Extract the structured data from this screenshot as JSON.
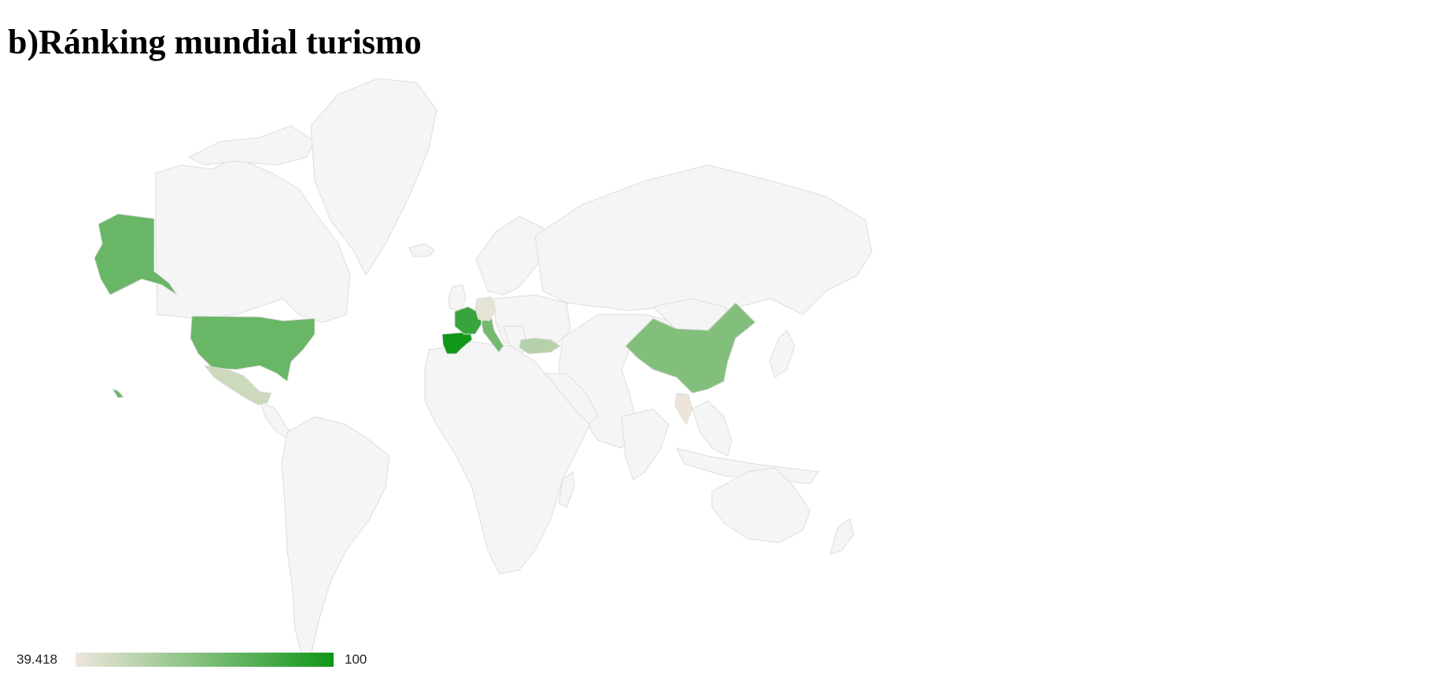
{
  "title": "b)Ránking mundial turismo",
  "legend": {
    "min_label": "39.418",
    "max_label": "100",
    "min_value": 39.418,
    "max_value": 100,
    "min_color": "#efe6dc",
    "max_color": "#109618"
  },
  "colors": {
    "no_data": "#f5f5f5",
    "border": "#dddddd"
  },
  "regions": [
    {
      "name": "Spain",
      "value": 100
    },
    {
      "name": "France",
      "value": 89
    },
    {
      "name": "United States",
      "value": 76
    },
    {
      "name": "Italy",
      "value": 73
    },
    {
      "name": "China",
      "value": 69
    },
    {
      "name": "Turkey",
      "value": 55
    },
    {
      "name": "Mexico",
      "value": 49
    },
    {
      "name": "Germany",
      "value": 42
    },
    {
      "name": "Thailand",
      "value": 40
    }
  ]
}
